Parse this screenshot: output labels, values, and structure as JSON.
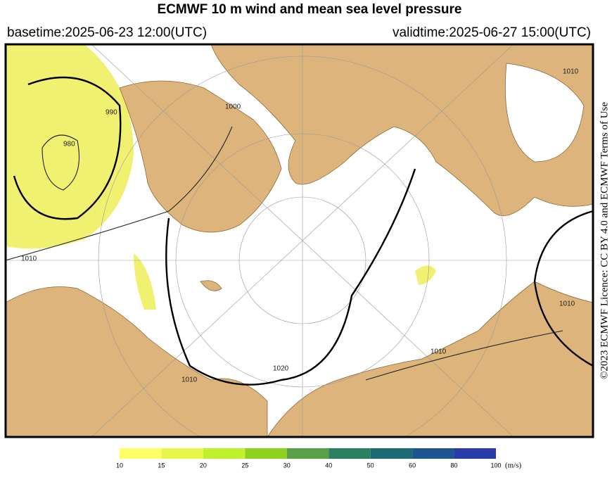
{
  "header": {
    "title": "ECMWF 10 m wind and mean sea level pressure",
    "basetime": "basetime:2025-06-23 12:00(UTC)",
    "validtime": "validtime:2025-06-27 15:00(UTC)"
  },
  "license": "©2023 ECMWF Licence: CC BY 4.0 and ECMWF Terms of Use",
  "map": {
    "contour_labels": [
      "980",
      "990",
      "1000",
      "1010",
      "1010",
      "1010",
      "1010",
      "1020",
      "1010"
    ]
  },
  "colorbar": {
    "labels": [
      "10",
      "15",
      "20",
      "25",
      "30",
      "40",
      "50",
      "60",
      "80",
      "100"
    ],
    "colors": [
      "#ffff66",
      "#e8f54a",
      "#bff22c",
      "#8fd21e",
      "#5aa048",
      "#2b8060",
      "#1e6a74",
      "#1e5590",
      "#2a3caa"
    ],
    "unit": "(m/s)"
  }
}
